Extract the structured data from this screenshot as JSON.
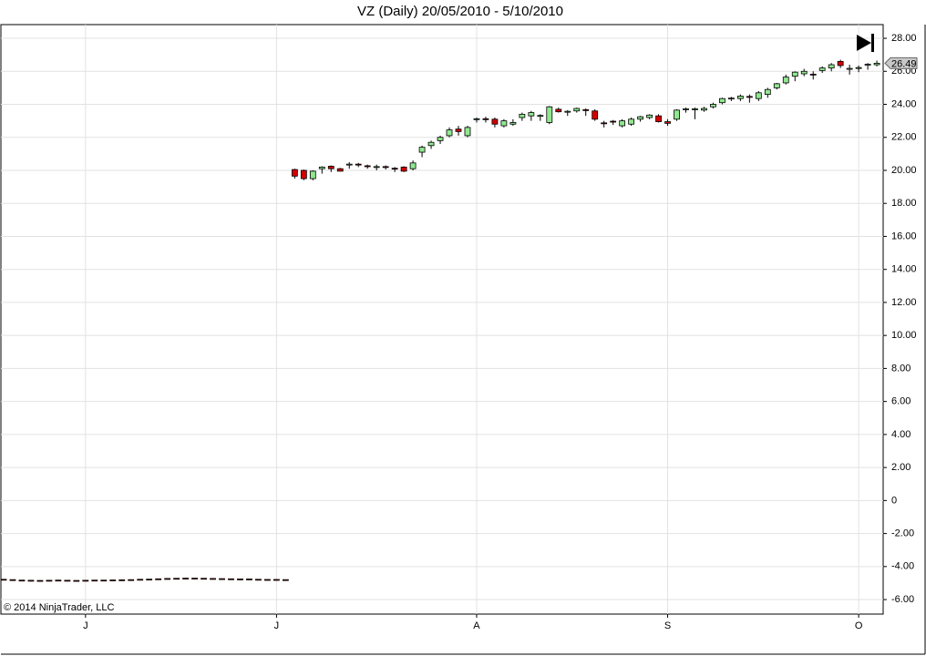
{
  "chart_data": {
    "type": "candlestick",
    "title": "VZ (Daily)  20/05/2010 - 5/10/2010",
    "watermark": "© 2014 NinjaTrader, LLC",
    "categories": [
      null,
      null,
      null,
      null,
      null,
      null,
      null,
      null,
      null,
      "J",
      null,
      null,
      null,
      null,
      null,
      null,
      null,
      null,
      null,
      null,
      null,
      null,
      null,
      null,
      null,
      null,
      null,
      null,
      null,
      null,
      "J",
      null,
      null,
      null,
      null,
      null,
      null,
      null,
      null,
      null,
      null,
      null,
      null,
      null,
      null,
      null,
      null,
      null,
      null,
      null,
      null,
      null,
      "A",
      null,
      null,
      null,
      null,
      null,
      null,
      null,
      null,
      null,
      null,
      null,
      null,
      null,
      null,
      null,
      null,
      null,
      null,
      null,
      null,
      "S",
      null,
      null,
      null,
      null,
      null,
      null,
      null,
      null,
      null,
      null,
      null,
      null,
      null,
      null,
      null,
      null,
      null,
      null,
      null,
      null,
      "O",
      null,
      null
    ],
    "open": [
      -4.8,
      -4.82,
      -4.85,
      -4.86,
      -4.87,
      -4.86,
      -4.85,
      -4.86,
      -4.87,
      -4.86,
      -4.85,
      -4.85,
      -4.84,
      -4.83,
      -4.82,
      -4.8,
      -4.79,
      -4.77,
      -4.75,
      -4.74,
      -4.73,
      -4.73,
      -4.74,
      -4.75,
      -4.76,
      -4.77,
      -4.78,
      -4.78,
      -4.8,
      -4.81,
      -4.81,
      -4.82,
      20.05,
      20.0,
      19.5,
      20.1,
      20.25,
      20.1,
      20.3,
      20.35,
      20.25,
      20.2,
      20.2,
      20.1,
      20.2,
      20.1,
      21.1,
      21.5,
      21.8,
      22.1,
      22.5,
      22.1,
      23.05,
      23.1,
      23.1,
      22.7,
      22.8,
      23.2,
      23.3,
      23.25,
      22.9,
      23.7,
      23.5,
      23.6,
      23.65,
      23.6,
      22.85,
      22.95,
      22.7,
      22.8,
      23.1,
      23.2,
      23.3,
      22.95,
      23.1,
      23.65,
      23.7,
      23.65,
      23.85,
      24.1,
      24.3,
      24.35,
      24.45,
      24.35,
      24.6,
      25.0,
      25.3,
      25.7,
      25.85,
      25.8,
      26.05,
      26.2,
      26.6,
      26.15,
      26.15,
      26.35,
      26.4
    ],
    "high": [
      -4.77,
      -4.79,
      -4.82,
      -4.83,
      -4.84,
      -4.83,
      -4.82,
      -4.83,
      -4.84,
      -4.83,
      -4.82,
      -4.82,
      -4.81,
      -4.8,
      -4.79,
      -4.77,
      -4.76,
      -4.74,
      -4.72,
      -4.71,
      -4.7,
      -4.7,
      -4.71,
      -4.72,
      -4.73,
      -4.74,
      -4.75,
      -4.75,
      -4.77,
      -4.78,
      -4.78,
      -4.79,
      20.1,
      20.05,
      20.0,
      20.25,
      20.3,
      20.15,
      20.5,
      20.45,
      20.35,
      20.35,
      20.3,
      20.2,
      20.25,
      20.6,
      21.5,
      21.8,
      22.1,
      22.6,
      22.7,
      22.7,
      23.2,
      23.25,
      23.2,
      23.1,
      23.1,
      23.5,
      23.6,
      23.4,
      23.9,
      23.8,
      23.65,
      23.8,
      23.75,
      23.7,
      23.0,
      23.05,
      23.1,
      23.2,
      23.3,
      23.4,
      23.4,
      23.1,
      23.7,
      23.8,
      23.8,
      23.85,
      24.1,
      24.4,
      24.45,
      24.6,
      24.6,
      24.8,
      25.0,
      25.3,
      25.8,
      26.0,
      26.15,
      26.0,
      26.3,
      26.5,
      26.7,
      26.4,
      26.35,
      26.5,
      26.65
    ],
    "low": [
      -4.84,
      -4.86,
      -4.89,
      -4.9,
      -4.91,
      -4.9,
      -4.89,
      -4.9,
      -4.91,
      -4.9,
      -4.89,
      -4.89,
      -4.88,
      -4.87,
      -4.86,
      -4.84,
      -4.83,
      -4.81,
      -4.79,
      -4.78,
      -4.77,
      -4.77,
      -4.78,
      -4.79,
      -4.8,
      -4.81,
      -4.82,
      -4.82,
      -4.84,
      -4.85,
      -4.85,
      -4.86,
      19.5,
      19.4,
      19.4,
      19.8,
      19.9,
      19.95,
      20.1,
      20.2,
      20.1,
      20.0,
      20.05,
      19.9,
      19.9,
      20.0,
      20.8,
      21.3,
      21.6,
      22.0,
      22.1,
      22.0,
      22.9,
      22.9,
      22.6,
      22.6,
      22.7,
      23.0,
      23.0,
      23.0,
      22.8,
      23.5,
      23.3,
      23.5,
      23.3,
      23.0,
      22.6,
      22.75,
      22.6,
      22.7,
      22.95,
      23.1,
      22.9,
      22.7,
      23.0,
      23.5,
      23.1,
      23.55,
      23.75,
      24.0,
      24.2,
      24.2,
      24.1,
      24.2,
      24.4,
      24.9,
      25.2,
      25.4,
      25.7,
      25.5,
      25.9,
      26.0,
      26.2,
      25.8,
      25.95,
      26.1,
      26.3
    ],
    "close": [
      -4.81,
      -4.83,
      -4.86,
      -4.87,
      -4.88,
      -4.87,
      -4.86,
      -4.87,
      -4.88,
      -4.87,
      -4.86,
      -4.86,
      -4.85,
      -4.84,
      -4.83,
      -4.81,
      -4.8,
      -4.78,
      -4.76,
      -4.75,
      -4.74,
      -4.74,
      -4.75,
      -4.76,
      -4.77,
      -4.78,
      -4.79,
      -4.79,
      -4.81,
      -4.82,
      -4.82,
      -4.83,
      19.65,
      19.5,
      19.95,
      20.2,
      20.1,
      19.95,
      20.35,
      20.3,
      20.2,
      20.2,
      20.15,
      20.05,
      19.95,
      20.45,
      21.4,
      21.7,
      22.0,
      22.45,
      22.35,
      22.6,
      23.1,
      23.05,
      22.8,
      23.0,
      22.9,
      23.4,
      23.5,
      23.3,
      23.85,
      23.55,
      23.55,
      23.75,
      23.6,
      23.1,
      22.8,
      22.9,
      23.0,
      23.1,
      23.25,
      23.35,
      22.95,
      22.85,
      23.65,
      23.7,
      23.7,
      23.75,
      24.0,
      24.35,
      24.35,
      24.5,
      24.4,
      24.7,
      24.9,
      25.25,
      25.65,
      25.95,
      26.0,
      25.75,
      26.2,
      26.4,
      26.35,
      26.15,
      26.2,
      26.4,
      26.49
    ],
    "up_color": "#90e890",
    "down_color": "#d40000",
    "last_price": 26.49,
    "ylim": [
      -6.88,
      28.83
    ],
    "yticks": [
      {
        "value": -6,
        "label": "-6.00"
      },
      {
        "value": -4,
        "label": "-4.00"
      },
      {
        "value": -2,
        "label": "-2.00"
      },
      0,
      {
        "value": 2,
        "label": "2.00"
      },
      {
        "value": 4,
        "label": "4.00"
      },
      {
        "value": 6,
        "label": "6.00"
      },
      {
        "value": 8,
        "label": "8.00"
      },
      {
        "value": 10,
        "label": "10.00"
      },
      {
        "value": 12,
        "label": "12.00"
      },
      {
        "value": 14,
        "label": "14.00"
      },
      {
        "value": 16,
        "label": "16.00"
      },
      {
        "value": 18,
        "label": "18.00"
      },
      {
        "value": 20,
        "label": "20.00"
      },
      {
        "value": 22,
        "label": "22.00"
      },
      {
        "value": 24,
        "label": "24.00"
      },
      {
        "value": 26,
        "label": "26.00"
      },
      {
        "value": 28,
        "label": "28.00"
      }
    ],
    "grid": true
  }
}
